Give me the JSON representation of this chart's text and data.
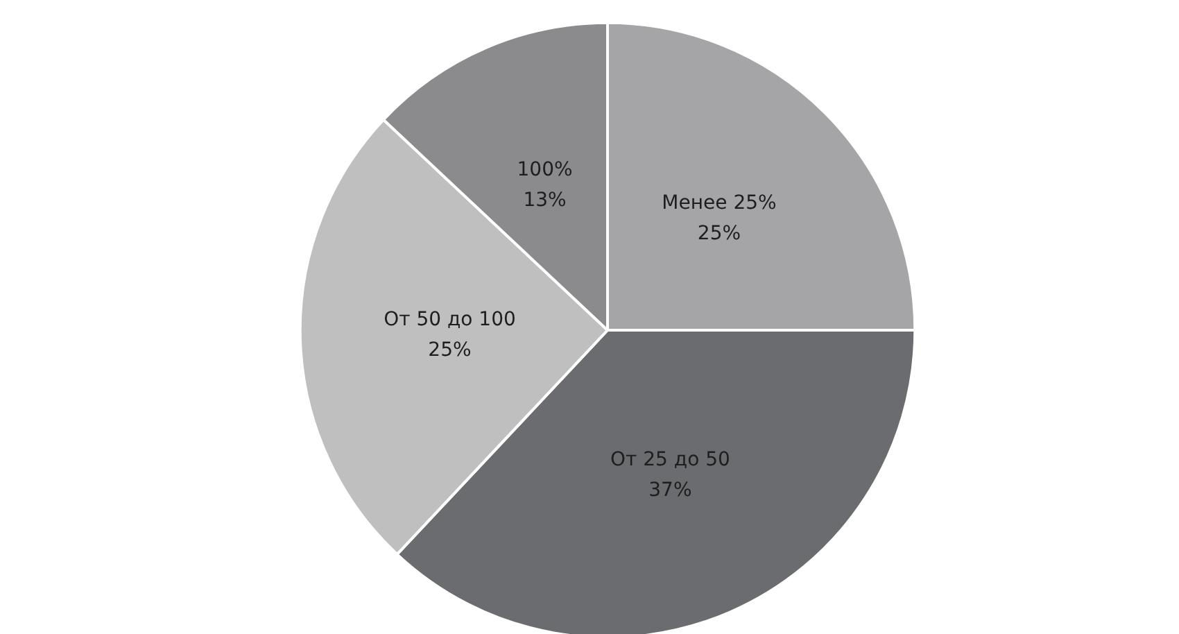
{
  "chart_data": {
    "type": "pie",
    "categories": [
      "Менее 25%",
      "От 25 до 50",
      "От 50 до 100",
      "100%"
    ],
    "values": [
      25,
      37,
      25,
      13
    ],
    "value_labels": [
      "25%",
      "37%",
      "25%",
      "13%"
    ],
    "colors": [
      "#a5a5a7",
      "#6b6c6f",
      "#bfbfc0",
      "#8b8b8d"
    ]
  }
}
